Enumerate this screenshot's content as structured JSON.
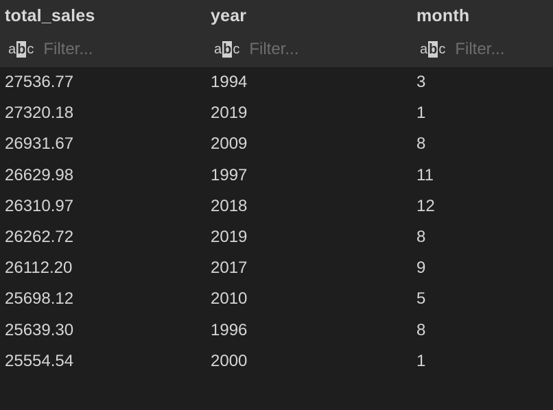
{
  "columns": [
    {
      "label": "total_sales",
      "filter_placeholder": "Filter...",
      "type_icon": "abc-type-icon"
    },
    {
      "label": "year",
      "filter_placeholder": "Filter...",
      "type_icon": "abc-type-icon"
    },
    {
      "label": "month",
      "filter_placeholder": "Filter...",
      "type_icon": "abc-type-icon"
    }
  ],
  "rows": [
    [
      "27536.77",
      "1994",
      "3"
    ],
    [
      "27320.18",
      "2019",
      "1"
    ],
    [
      "26931.67",
      "2009",
      "8"
    ],
    [
      "26629.98",
      "1997",
      "11"
    ],
    [
      "26310.97",
      "2018",
      "12"
    ],
    [
      "26262.72",
      "2019",
      "8"
    ],
    [
      "26112.20",
      "2017",
      "9"
    ],
    [
      "25698.12",
      "2010",
      "5"
    ],
    [
      "25639.30",
      "1996",
      "8"
    ],
    [
      "25554.54",
      "2000",
      "1"
    ]
  ],
  "colors": {
    "background": "#1e1e1e",
    "header_background": "#2d2d2d",
    "text": "#d6d6d6",
    "placeholder": "#6e6e6e"
  }
}
